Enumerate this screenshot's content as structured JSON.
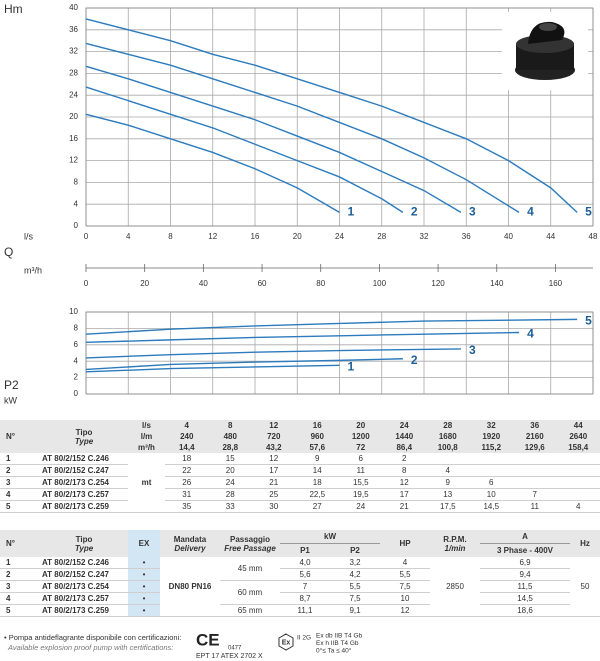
{
  "chart_data": [
    {
      "type": "line",
      "ylabel": "Hm",
      "xlabel": "l/s",
      "flow_label": "Q",
      "xlim": [
        0,
        48
      ],
      "xticks": [
        0,
        4,
        8,
        12,
        16,
        20,
        24,
        28,
        32,
        36,
        40,
        44,
        48
      ],
      "ylim": [
        0,
        40
      ],
      "yticks": [
        0,
        4,
        8,
        12,
        16,
        20,
        24,
        28,
        32,
        36,
        40
      ],
      "grid": true,
      "x2label": "m³/h",
      "x2lim": [
        0,
        172.8
      ],
      "x2ticks": [
        0,
        20,
        40,
        60,
        80,
        100,
        120,
        140,
        160
      ],
      "series": [
        {
          "name": "1",
          "color": "#2b7bbd",
          "x": [
            0,
            4,
            8,
            12,
            16,
            20,
            24
          ],
          "values": [
            20.5,
            18.5,
            16,
            13.5,
            10.5,
            7,
            2.5
          ]
        },
        {
          "name": "2",
          "color": "#2b7bbd",
          "x": [
            0,
            4,
            8,
            12,
            16,
            20,
            24,
            28,
            30
          ],
          "values": [
            25.5,
            23,
            20.5,
            18,
            15,
            12,
            9,
            5,
            2.5
          ]
        },
        {
          "name": "3",
          "color": "#2b7bbd",
          "x": [
            0,
            4,
            8,
            12,
            16,
            20,
            24,
            28,
            32,
            35.5
          ],
          "values": [
            29.3,
            27,
            24.5,
            22,
            19.5,
            16.5,
            13.5,
            10,
            6.5,
            2.5
          ]
        },
        {
          "name": "4",
          "color": "#2b7bbd",
          "x": [
            0,
            4,
            8,
            12,
            16,
            20,
            24,
            28,
            32,
            36,
            41
          ],
          "values": [
            33.5,
            31.5,
            29.5,
            27,
            24.5,
            22,
            19,
            16,
            12.5,
            8.5,
            2.5
          ]
        },
        {
          "name": "5",
          "color": "#2b7bbd",
          "x": [
            0,
            4,
            8,
            12,
            16,
            20,
            24,
            28,
            32,
            36,
            40,
            44,
            46.5
          ],
          "values": [
            38,
            36,
            34,
            31.5,
            29.5,
            27,
            24.5,
            22,
            19,
            16,
            12,
            7,
            2.5
          ]
        }
      ]
    },
    {
      "type": "line",
      "ylabel": "P2",
      "yunit": "kW",
      "xlim": [
        0,
        48
      ],
      "xticks": [
        0,
        4,
        8,
        12,
        16,
        20,
        24,
        28,
        32,
        36,
        40,
        44,
        48
      ],
      "ylim": [
        0,
        10
      ],
      "yticks": [
        0,
        2,
        4,
        6,
        8,
        10
      ],
      "grid": true,
      "series": [
        {
          "name": "1",
          "color": "#2b7bbd",
          "x": [
            0,
            8,
            16,
            24
          ],
          "values": [
            2.7,
            3.1,
            3.3,
            3.5
          ]
        },
        {
          "name": "2",
          "color": "#2b7bbd",
          "x": [
            0,
            8,
            16,
            24,
            30
          ],
          "values": [
            3,
            3.6,
            3.9,
            4.1,
            4.3
          ]
        },
        {
          "name": "3",
          "color": "#2b7bbd",
          "x": [
            0,
            8,
            16,
            24,
            35.5
          ],
          "values": [
            4.4,
            4.8,
            5.1,
            5.3,
            5.5
          ]
        },
        {
          "name": "4",
          "color": "#2b7bbd",
          "x": [
            0,
            8,
            16,
            24,
            32,
            41
          ],
          "values": [
            6.3,
            6.6,
            6.9,
            7.1,
            7.3,
            7.5
          ]
        },
        {
          "name": "5",
          "color": "#2b7bbd",
          "x": [
            0,
            8,
            16,
            24,
            32,
            40,
            46.5
          ],
          "values": [
            7.3,
            7.9,
            8.3,
            8.6,
            8.9,
            9,
            9.1
          ]
        }
      ]
    }
  ],
  "table1": {
    "no_header": "N°",
    "tipo": "Tipo",
    "type": "Type",
    "flow_units": [
      "l/s",
      "l/m",
      "m³/h"
    ],
    "flow": [
      [
        4,
        8,
        12,
        16,
        20,
        24,
        28,
        32,
        36,
        44
      ],
      [
        240,
        480,
        720,
        960,
        1200,
        1440,
        1680,
        1920,
        2160,
        2640
      ],
      [
        "14,4",
        "28,8",
        "43,2",
        "57,6",
        72,
        "86,4",
        "100,8",
        "115,2",
        "129,6",
        "158,4"
      ]
    ],
    "head_unit": "mt",
    "rows": [
      {
        "no": 1,
        "model": "AT 80/2/152 C.246",
        "head": [
          18,
          15,
          12,
          9,
          6,
          2
        ]
      },
      {
        "no": 2,
        "model": "AT 80/2/152 C.247",
        "head": [
          22,
          20,
          17,
          14,
          11,
          8,
          4
        ]
      },
      {
        "no": 3,
        "model": "AT 80/2/173 C.254",
        "head": [
          26,
          24,
          21,
          18,
          "15,5",
          12,
          9,
          6
        ]
      },
      {
        "no": 4,
        "model": "AT 80/2/173 C.257",
        "head": [
          31,
          28,
          25,
          "22,5",
          "19,5",
          17,
          13,
          10,
          7
        ]
      },
      {
        "no": 5,
        "model": "AT 80/2/173 C.259",
        "head": [
          35,
          33,
          30,
          27,
          24,
          21,
          "17,5",
          "14,5",
          11,
          4
        ]
      }
    ]
  },
  "table2": {
    "header": {
      "no": "N°",
      "tipo": "Tipo",
      "type": "Type",
      "ex": "EX",
      "mandata": "Mandata",
      "delivery": "Delivery",
      "passaggio": "Passaggio",
      "free_passage": "Free Passage",
      "kw": "kW",
      "p1": "P1",
      "p2": "P2",
      "hp": "HP",
      "rpm": "R.P.M.",
      "rpm_unit": "1/min",
      "a": "A",
      "phase": "3 Phase - 400V",
      "hz": "Hz"
    },
    "delivery_value": "DN80 PN16",
    "rpm_value": 2850,
    "hz_value": 50,
    "rows": [
      {
        "no": 1,
        "model": "AT 80/2/152 C.246",
        "ex": "•",
        "passage": "45 mm",
        "p1": "4,0",
        "p2": "3,2",
        "hp": 4,
        "a": "6,9"
      },
      {
        "no": 2,
        "model": "AT 80/2/152 C.247",
        "ex": "•",
        "passage": null,
        "p1": "5,6",
        "p2": "4,2",
        "hp": "5,5",
        "a": "9,4"
      },
      {
        "no": 3,
        "model": "AT 80/2/173 C.254",
        "ex": "•",
        "passage": "60 mm",
        "p1": 7,
        "p2": "5,5",
        "hp": "7,5",
        "a": "11,5"
      },
      {
        "no": 4,
        "model": "AT 80/2/173 C.257",
        "ex": "•",
        "passage": null,
        "p1": "8,7",
        "p2": "7,5",
        "hp": 10,
        "a": "14,5"
      },
      {
        "no": 5,
        "model": "AT 80/2/173 C.259",
        "ex": "•",
        "passage": "65 mm",
        "p1": "11,1",
        "p2": "9,1",
        "hp": 12,
        "a": "18,6"
      }
    ]
  },
  "footer": {
    "note": "• Pompa antideflagrante disponibile con certificazioni:",
    "note_en": "Available explosion proof pump with certifications:",
    "ce": "CE",
    "ce_number": "0477",
    "atex": "EPT 17 ATEX 2702 X",
    "ex": "Ex",
    "group": "II 2G",
    "marks": [
      "Ex db IIB T4 Gb",
      "Ex h IIB T4 Gb",
      "0°≤ Ta ≤ 40°"
    ]
  }
}
